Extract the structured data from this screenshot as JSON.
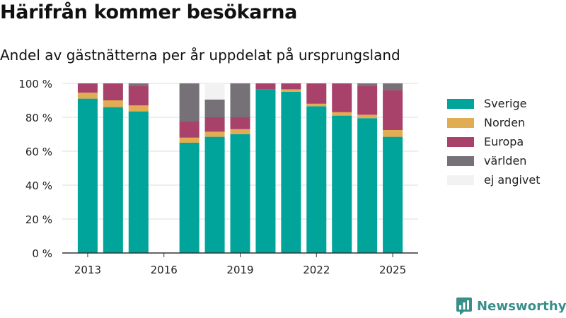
{
  "brand": {
    "name": "Newsworthy"
  },
  "chart_data": {
    "type": "bar",
    "stacked": true,
    "title": "Härifrån kommer besökarna",
    "subtitle": "Andel av gästnätterna per år uppdelat på ursprungsland",
    "xlabel": "",
    "ylabel": "",
    "ylim": [
      0,
      100
    ],
    "xlim": [
      2012,
      2026
    ],
    "yticks": [
      {
        "value": 0,
        "label": "0 %"
      },
      {
        "value": 20,
        "label": "20 %"
      },
      {
        "value": 40,
        "label": "40 %"
      },
      {
        "value": 60,
        "label": "60 %"
      },
      {
        "value": 80,
        "label": "80 %"
      },
      {
        "value": 100,
        "label": "100 %"
      }
    ],
    "xticks": [
      {
        "value": 2013,
        "label": "2013"
      },
      {
        "value": 2016,
        "label": "2016"
      },
      {
        "value": 2019,
        "label": "2019"
      },
      {
        "value": 2022,
        "label": "2022"
      },
      {
        "value": 2025,
        "label": "2025"
      }
    ],
    "grid": "horizontal",
    "legend_position": "right",
    "categories": [
      2013,
      2014,
      2015,
      2016,
      2017,
      2018,
      2019,
      2020,
      2021,
      2022,
      2023,
      2024,
      2025
    ],
    "series": [
      {
        "name": "Sverige",
        "color": "#00a49a",
        "values": [
          91,
          86,
          83.5,
          null,
          65,
          68.5,
          70,
          96.5,
          95,
          86.5,
          81,
          79.5,
          68.5
        ]
      },
      {
        "name": "Norden",
        "color": "#e2ad52",
        "values": [
          3.5,
          4,
          3.5,
          null,
          3,
          3,
          3,
          0,
          1.5,
          1.5,
          2,
          2,
          4
        ]
      },
      {
        "name": "Europa",
        "color": "#a8426b",
        "values": [
          5.5,
          10,
          11.5,
          null,
          9.5,
          8.5,
          7,
          3.5,
          3.5,
          12,
          17,
          17,
          23.5
        ]
      },
      {
        "name": "världen",
        "color": "#767176",
        "values": [
          0,
          0,
          1.5,
          null,
          22.5,
          10.5,
          20,
          0,
          0,
          0,
          0,
          1.5,
          4
        ]
      },
      {
        "name": "ej angivet",
        "color": "#f2f2f2",
        "values": [
          0,
          0,
          0,
          null,
          0,
          9.5,
          0,
          0,
          0,
          0,
          0,
          0,
          0
        ]
      }
    ]
  }
}
